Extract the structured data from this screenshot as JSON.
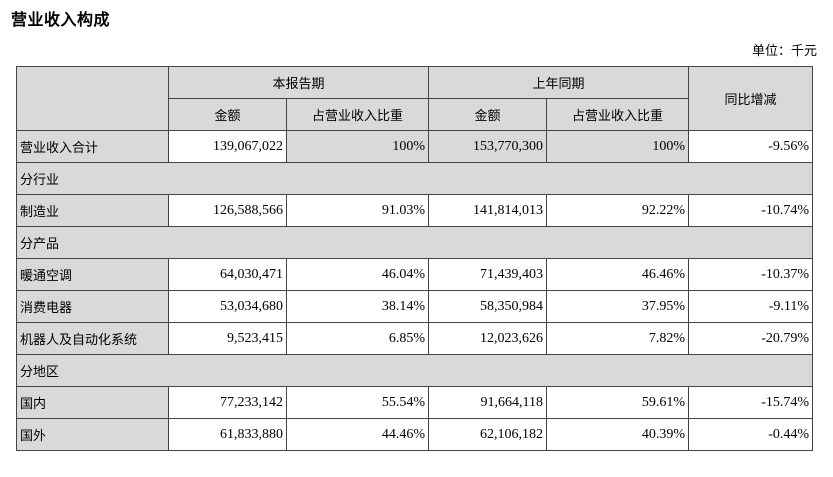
{
  "title": "营业收入构成",
  "unit": "单位：千元",
  "header": {
    "current_period": "本报告期",
    "prior_period": "上年同期",
    "amount": "金额",
    "share": "占营业收入比重",
    "yoy": "同比增减"
  },
  "total": {
    "label": "营业收入合计",
    "cur_amount": "139,067,022",
    "cur_share": "100%",
    "prev_amount": "153,770,300",
    "prev_share": "100%",
    "yoy": "-9.56%"
  },
  "sections": {
    "industry": "分行业",
    "product": "分产品",
    "region": "分地区"
  },
  "industry_rows": [
    {
      "label": "制造业",
      "cur_amount": "126,588,566",
      "cur_share": "91.03%",
      "prev_amount": "141,814,013",
      "prev_share": "92.22%",
      "yoy": "-10.74%"
    }
  ],
  "product_rows": [
    {
      "label": "暖通空调",
      "cur_amount": "64,030,471",
      "cur_share": "46.04%",
      "prev_amount": "71,439,403",
      "prev_share": "46.46%",
      "yoy": "-10.37%"
    },
    {
      "label": "消费电器",
      "cur_amount": "53,034,680",
      "cur_share": "38.14%",
      "prev_amount": "58,350,984",
      "prev_share": "37.95%",
      "yoy": "-9.11%"
    },
    {
      "label": "机器人及自动化系统",
      "cur_amount": "9,523,415",
      "cur_share": "6.85%",
      "prev_amount": "12,023,626",
      "prev_share": "7.82%",
      "yoy": "-20.79%"
    }
  ],
  "region_rows": [
    {
      "label": "国内",
      "cur_amount": "77,233,142",
      "cur_share": "55.54%",
      "prev_amount": "91,664,118",
      "prev_share": "59.61%",
      "yoy": "-15.74%"
    },
    {
      "label": "国外",
      "cur_amount": "61,833,880",
      "cur_share": "44.46%",
      "prev_amount": "62,106,182",
      "prev_share": "40.39%",
      "yoy": "-0.44%"
    }
  ]
}
